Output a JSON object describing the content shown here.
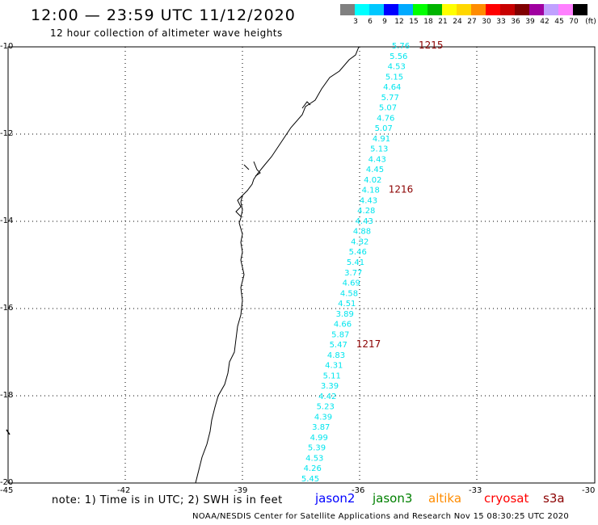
{
  "header": {
    "title": "12:00 — 23:59 UTC 11/12/2020",
    "subtitle": "12 hour collection of altimeter wave heights"
  },
  "color_scale": {
    "unit": "(ft)",
    "swatches": [
      "#808080",
      "#00ffff",
      "#00c8ff",
      "#0000ff",
      "#00aaff",
      "#00ff00",
      "#00b400",
      "#ffff00",
      "#ffd700",
      "#ff8c00",
      "#ff0000",
      "#c80000",
      "#800000",
      "#a000a0",
      "#c0a0ff",
      "#ff80ff",
      "#000000"
    ],
    "ticks": [
      "3",
      "6",
      "9",
      "12",
      "15",
      "18",
      "21",
      "24",
      "27",
      "30",
      "33",
      "36",
      "39",
      "42",
      "45",
      "70"
    ]
  },
  "map": {
    "lat_labels": [
      "-10",
      "-12",
      "-14",
      "-16",
      "-18",
      "-20"
    ],
    "lon_labels": [
      "-45",
      "-42",
      "-39",
      "-36",
      "-33",
      "-30"
    ],
    "wave_color": "#00e5ee",
    "time_color": "#8b0000",
    "wave_heights": [
      "5.76",
      "5.56",
      "4.53",
      "5.15",
      "4.64",
      "5.77",
      "5.07",
      "4.76",
      "5.07",
      "4.91",
      "5.13",
      "4.43",
      "4.45",
      "4.02",
      "4.18",
      "4.43",
      "4.28",
      "4.43",
      "4.88",
      "4.32",
      "5.46",
      "5.41",
      "3.77",
      "4.69",
      "4.58",
      "4.51",
      "3.89",
      "4.66",
      "5.87",
      "5.47",
      "4.83",
      "4.31",
      "5.11",
      "3.39",
      "4.42",
      "5.23",
      "4.39",
      "3.87",
      "4.99",
      "5.39",
      "4.53",
      "4.26",
      "5.45"
    ],
    "time_labels": [
      {
        "text": "1215",
        "index": 0
      },
      {
        "text": "1216",
        "index": 14
      },
      {
        "text": "1217",
        "index": 29
      }
    ]
  },
  "footer": {
    "note": "note: 1) Time is in UTC; 2) SWH is in feet",
    "satellites": [
      {
        "name": "jason2",
        "color": "#0000ff"
      },
      {
        "name": "jason3",
        "color": "#008000"
      },
      {
        "name": "altika",
        "color": "#ff8c00"
      },
      {
        "name": "cryosat",
        "color": "#ff0000"
      },
      {
        "name": "s3a",
        "color": "#8b0000"
      }
    ],
    "credit": "NOAA/NESDIS Center for Satellite Applications and Research   Nov 15 08:30:25 UTC 2020"
  }
}
